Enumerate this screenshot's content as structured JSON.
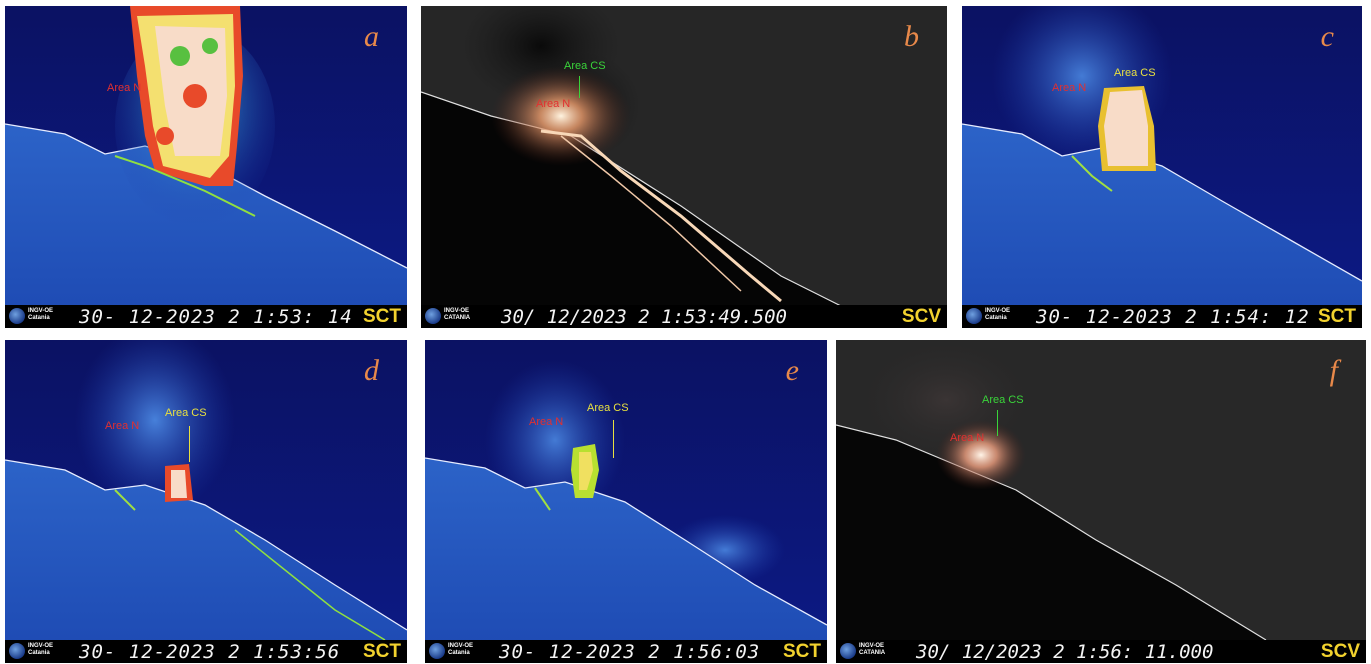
{
  "panels": [
    {
      "id": "a",
      "letter": "a",
      "timestamp": "30- 12-2023  2 1:53: 14",
      "camera": "SCT",
      "org": "INGV-OE",
      "org2": "Catania",
      "labels": [
        {
          "text": "Area N",
          "color": "red"
        }
      ]
    },
    {
      "id": "b",
      "letter": "b",
      "timestamp": "30/ 12/2023  2 1:53:49.500",
      "camera": "SCV",
      "org": "INGV-OE",
      "org2": "CATANIA",
      "labels": [
        {
          "text": "Area CS",
          "color": "green"
        },
        {
          "text": "Area N",
          "color": "red"
        }
      ]
    },
    {
      "id": "c",
      "letter": "c",
      "timestamp": "30- 12-2023  2 1:54: 12",
      "camera": "SCT",
      "org": "INGV-OE",
      "org2": "Catania",
      "labels": [
        {
          "text": "Area N",
          "color": "red"
        },
        {
          "text": "Area CS",
          "color": "yellow"
        }
      ]
    },
    {
      "id": "d",
      "letter": "d",
      "timestamp": "30- 12-2023  2 1:53:56",
      "camera": "SCT",
      "org": "INGV-OE",
      "org2": "Catania",
      "labels": [
        {
          "text": "Area N",
          "color": "red"
        },
        {
          "text": "Area CS",
          "color": "yellow"
        }
      ]
    },
    {
      "id": "e",
      "letter": "e",
      "timestamp": "30- 12-2023  2 1:56:03",
      "camera": "SCT",
      "org": "INGV-OE",
      "org2": "Catania",
      "labels": [
        {
          "text": "Area N",
          "color": "red"
        },
        {
          "text": "Area CS",
          "color": "yellow"
        }
      ]
    },
    {
      "id": "f",
      "letter": "f",
      "timestamp": "30/ 12/2023  2 1:56: 11.000",
      "camera": "SCV",
      "org": "INGV-OE",
      "org2": "CATANIA",
      "labels": [
        {
          "text": "Area CS",
          "color": "green"
        },
        {
          "text": "Area N",
          "color": "red"
        }
      ]
    }
  ]
}
